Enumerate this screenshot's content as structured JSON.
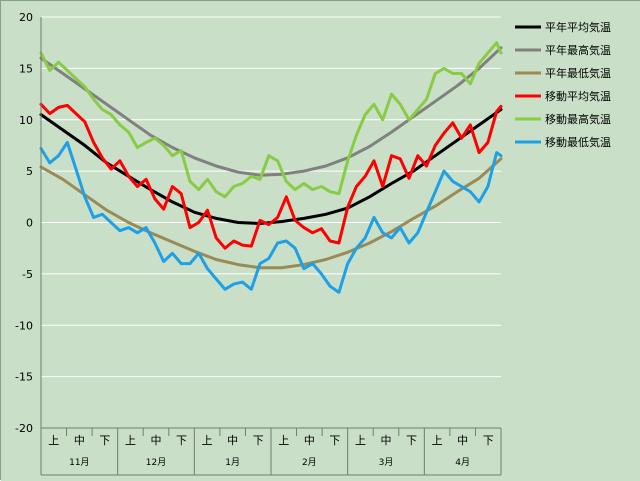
{
  "chart_data": {
    "type": "line",
    "ylim": [
      -20,
      20
    ],
    "yticks": [
      20,
      15,
      10,
      5,
      0,
      -5,
      -10,
      -15,
      -20
    ],
    "x_days": 180,
    "period_labels": [
      "上",
      "中",
      "下"
    ],
    "months": [
      "11月",
      "12月",
      "1月",
      "2月",
      "3月",
      "4月"
    ],
    "grid": "horizontal",
    "legend_position": "right",
    "colors": {
      "plot_bg": "#c9dfc8",
      "outer_bg": "#c9dfc8",
      "grid": "#ffffff"
    },
    "series": [
      {
        "name": "平年平均気温",
        "color": "#000000",
        "points": [
          [
            0,
            10.5
          ],
          [
            10,
            9.0
          ],
          [
            20,
            7.5
          ],
          [
            30,
            5.8
          ],
          [
            40,
            4.5
          ],
          [
            50,
            3.2
          ],
          [
            60,
            2.0
          ],
          [
            70,
            1.0
          ],
          [
            80,
            0.4
          ],
          [
            90,
            0.0
          ],
          [
            100,
            -0.1
          ],
          [
            110,
            0.1
          ],
          [
            120,
            0.4
          ],
          [
            130,
            0.8
          ],
          [
            140,
            1.4
          ],
          [
            150,
            2.5
          ],
          [
            160,
            3.8
          ],
          [
            170,
            5.0
          ],
          [
            180,
            6.5
          ],
          [
            190,
            8.0
          ],
          [
            200,
            9.5
          ],
          [
            210,
            11.0
          ]
        ]
      },
      {
        "name": "平年最高気温",
        "color": "#808080",
        "points": [
          [
            0,
            16.0
          ],
          [
            10,
            14.5
          ],
          [
            20,
            13.0
          ],
          [
            30,
            11.5
          ],
          [
            40,
            10.0
          ],
          [
            50,
            8.5
          ],
          [
            60,
            7.3
          ],
          [
            70,
            6.3
          ],
          [
            80,
            5.5
          ],
          [
            90,
            4.9
          ],
          [
            100,
            4.6
          ],
          [
            110,
            4.7
          ],
          [
            120,
            5.0
          ],
          [
            130,
            5.5
          ],
          [
            140,
            6.3
          ],
          [
            150,
            7.4
          ],
          [
            160,
            8.8
          ],
          [
            170,
            10.3
          ],
          [
            180,
            11.8
          ],
          [
            190,
            13.3
          ],
          [
            200,
            15.0
          ],
          [
            210,
            17.0
          ]
        ]
      },
      {
        "name": "平年最低気温",
        "color": "#9a8a55",
        "points": [
          [
            0,
            5.4
          ],
          [
            10,
            4.2
          ],
          [
            20,
            2.7
          ],
          [
            30,
            1.2
          ],
          [
            40,
            0.0
          ],
          [
            50,
            -1.0
          ],
          [
            60,
            -1.9
          ],
          [
            70,
            -2.8
          ],
          [
            80,
            -3.6
          ],
          [
            90,
            -4.1
          ],
          [
            100,
            -4.4
          ],
          [
            110,
            -4.4
          ],
          [
            120,
            -4.1
          ],
          [
            130,
            -3.6
          ],
          [
            140,
            -2.9
          ],
          [
            150,
            -2.0
          ],
          [
            160,
            -0.9
          ],
          [
            170,
            0.4
          ],
          [
            180,
            1.6
          ],
          [
            190,
            3.0
          ],
          [
            200,
            4.3
          ],
          [
            210,
            6.2
          ]
        ]
      },
      {
        "name": "移動平均気温",
        "color": "#ff0000",
        "points": [
          [
            0,
            11.5
          ],
          [
            4,
            10.6
          ],
          [
            8,
            11.2
          ],
          [
            12,
            11.4
          ],
          [
            16,
            10.6
          ],
          [
            20,
            9.8
          ],
          [
            24,
            7.8
          ],
          [
            28,
            6.3
          ],
          [
            32,
            5.2
          ],
          [
            36,
            6.0
          ],
          [
            40,
            4.5
          ],
          [
            44,
            3.5
          ],
          [
            48,
            4.2
          ],
          [
            52,
            2.3
          ],
          [
            56,
            1.3
          ],
          [
            60,
            3.5
          ],
          [
            64,
            2.8
          ],
          [
            68,
            -0.5
          ],
          [
            72,
            0.0
          ],
          [
            76,
            1.2
          ],
          [
            80,
            -1.5
          ],
          [
            84,
            -2.5
          ],
          [
            88,
            -1.8
          ],
          [
            92,
            -2.2
          ],
          [
            96,
            -2.3
          ],
          [
            100,
            0.2
          ],
          [
            104,
            -0.2
          ],
          [
            108,
            0.5
          ],
          [
            112,
            2.5
          ],
          [
            116,
            0.2
          ],
          [
            120,
            -0.5
          ],
          [
            124,
            -1.0
          ],
          [
            128,
            -0.6
          ],
          [
            132,
            -1.8
          ],
          [
            136,
            -2.0
          ],
          [
            140,
            1.5
          ],
          [
            144,
            3.5
          ],
          [
            148,
            4.5
          ],
          [
            152,
            6.0
          ],
          [
            156,
            3.5
          ],
          [
            160,
            6.5
          ],
          [
            164,
            6.2
          ],
          [
            168,
            4.3
          ],
          [
            172,
            6.5
          ],
          [
            176,
            5.5
          ],
          [
            180,
            7.5
          ],
          [
            184,
            8.7
          ],
          [
            188,
            9.7
          ],
          [
            192,
            8.2
          ],
          [
            196,
            9.5
          ],
          [
            200,
            6.8
          ],
          [
            204,
            7.8
          ],
          [
            208,
            10.8
          ],
          [
            210,
            11.3
          ]
        ]
      },
      {
        "name": "移動最高気温",
        "color": "#88cc44",
        "points": [
          [
            0,
            16.5
          ],
          [
            4,
            14.8
          ],
          [
            8,
            15.6
          ],
          [
            12,
            14.8
          ],
          [
            16,
            14.0
          ],
          [
            20,
            13.2
          ],
          [
            24,
            12.0
          ],
          [
            28,
            11.0
          ],
          [
            32,
            10.5
          ],
          [
            36,
            9.5
          ],
          [
            40,
            8.8
          ],
          [
            44,
            7.3
          ],
          [
            48,
            7.8
          ],
          [
            52,
            8.2
          ],
          [
            56,
            7.5
          ],
          [
            60,
            6.5
          ],
          [
            64,
            7.0
          ],
          [
            68,
            4.0
          ],
          [
            72,
            3.2
          ],
          [
            76,
            4.2
          ],
          [
            80,
            3.0
          ],
          [
            84,
            2.5
          ],
          [
            88,
            3.5
          ],
          [
            92,
            3.8
          ],
          [
            96,
            4.5
          ],
          [
            100,
            4.2
          ],
          [
            104,
            6.5
          ],
          [
            108,
            6.0
          ],
          [
            112,
            4.0
          ],
          [
            116,
            3.2
          ],
          [
            120,
            3.8
          ],
          [
            124,
            3.2
          ],
          [
            128,
            3.5
          ],
          [
            132,
            3.0
          ],
          [
            136,
            2.8
          ],
          [
            140,
            6.0
          ],
          [
            144,
            8.5
          ],
          [
            148,
            10.5
          ],
          [
            152,
            11.5
          ],
          [
            156,
            10.0
          ],
          [
            160,
            12.5
          ],
          [
            164,
            11.5
          ],
          [
            168,
            10.0
          ],
          [
            172,
            11.0
          ],
          [
            176,
            12.0
          ],
          [
            180,
            14.5
          ],
          [
            184,
            15.0
          ],
          [
            188,
            14.5
          ],
          [
            192,
            14.5
          ],
          [
            196,
            13.5
          ],
          [
            200,
            15.5
          ],
          [
            204,
            16.5
          ],
          [
            208,
            17.5
          ],
          [
            210,
            16.5
          ]
        ]
      },
      {
        "name": "移動最低気温",
        "color": "#1ea0e6",
        "points": [
          [
            0,
            7.2
          ],
          [
            4,
            5.8
          ],
          [
            8,
            6.5
          ],
          [
            12,
            7.8
          ],
          [
            16,
            5.2
          ],
          [
            20,
            2.5
          ],
          [
            24,
            0.5
          ],
          [
            28,
            0.8
          ],
          [
            32,
            0.0
          ],
          [
            36,
            -0.8
          ],
          [
            40,
            -0.5
          ],
          [
            44,
            -1.0
          ],
          [
            48,
            -0.5
          ],
          [
            52,
            -2.0
          ],
          [
            56,
            -3.8
          ],
          [
            60,
            -3.0
          ],
          [
            64,
            -4.0
          ],
          [
            68,
            -4.0
          ],
          [
            72,
            -3.0
          ],
          [
            76,
            -4.5
          ],
          [
            80,
            -5.5
          ],
          [
            84,
            -6.5
          ],
          [
            88,
            -6.0
          ],
          [
            92,
            -5.8
          ],
          [
            96,
            -6.5
          ],
          [
            100,
            -4.0
          ],
          [
            104,
            -3.5
          ],
          [
            108,
            -2.0
          ],
          [
            112,
            -1.8
          ],
          [
            116,
            -2.5
          ],
          [
            120,
            -4.5
          ],
          [
            124,
            -4.0
          ],
          [
            128,
            -5.0
          ],
          [
            132,
            -6.2
          ],
          [
            136,
            -6.8
          ],
          [
            140,
            -4.0
          ],
          [
            144,
            -2.5
          ],
          [
            148,
            -1.5
          ],
          [
            152,
            0.5
          ],
          [
            156,
            -1.0
          ],
          [
            160,
            -1.5
          ],
          [
            164,
            -0.5
          ],
          [
            168,
            -2.0
          ],
          [
            172,
            -1.0
          ],
          [
            176,
            1.0
          ],
          [
            180,
            3.0
          ],
          [
            184,
            5.0
          ],
          [
            188,
            4.0
          ],
          [
            192,
            3.5
          ],
          [
            196,
            3.0
          ],
          [
            200,
            2.0
          ],
          [
            204,
            3.5
          ],
          [
            208,
            6.8
          ],
          [
            210,
            6.5
          ]
        ]
      }
    ]
  }
}
